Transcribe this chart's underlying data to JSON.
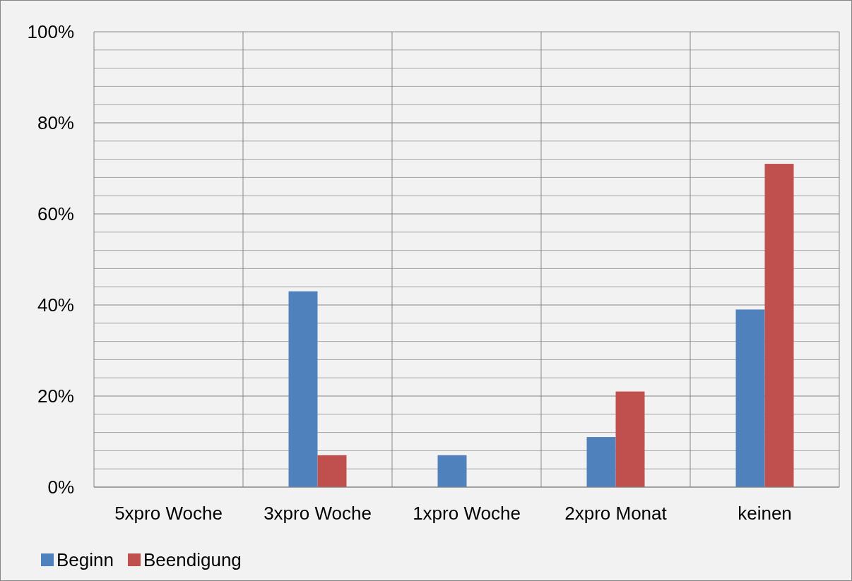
{
  "chart_data": {
    "type": "bar",
    "categories": [
      "5xpro Woche",
      "3xpro Woche",
      "1xpro Woche",
      "2xpro Monat",
      "keinen"
    ],
    "series": [
      {
        "name": "Beginn",
        "color": "#4f81bd",
        "values": [
          0,
          43,
          7,
          11,
          39
        ]
      },
      {
        "name": "Beendigung",
        "color": "#c0504d",
        "values": [
          0,
          7,
          0,
          21,
          71
        ]
      }
    ],
    "ylim": [
      0,
      100
    ],
    "yticks": [
      {
        "value": 0,
        "label": "0%"
      },
      {
        "value": 4,
        "label": null
      },
      {
        "value": 8,
        "label": null
      },
      {
        "value": 12,
        "label": null
      },
      {
        "value": 16,
        "label": null
      },
      {
        "value": 20,
        "label": "20%"
      },
      {
        "value": 24,
        "label": null
      },
      {
        "value": 28,
        "label": null
      },
      {
        "value": 32,
        "label": null
      },
      {
        "value": 36,
        "label": null
      },
      {
        "value": 40,
        "label": "40%"
      },
      {
        "value": 44,
        "label": null
      },
      {
        "value": 48,
        "label": null
      },
      {
        "value": 52,
        "label": null
      },
      {
        "value": 56,
        "label": null
      },
      {
        "value": 60,
        "label": "60%"
      },
      {
        "value": 64,
        "label": null
      },
      {
        "value": 68,
        "label": null
      },
      {
        "value": 72,
        "label": null
      },
      {
        "value": 76,
        "label": null
      },
      {
        "value": 80,
        "label": "80%"
      },
      {
        "value": 84,
        "label": null
      },
      {
        "value": 88,
        "label": null
      },
      {
        "value": 92,
        "label": null
      },
      {
        "value": 96,
        "label": null
      },
      {
        "value": 100,
        "label": "100%"
      }
    ],
    "grid": true,
    "legend": "bottom left"
  }
}
